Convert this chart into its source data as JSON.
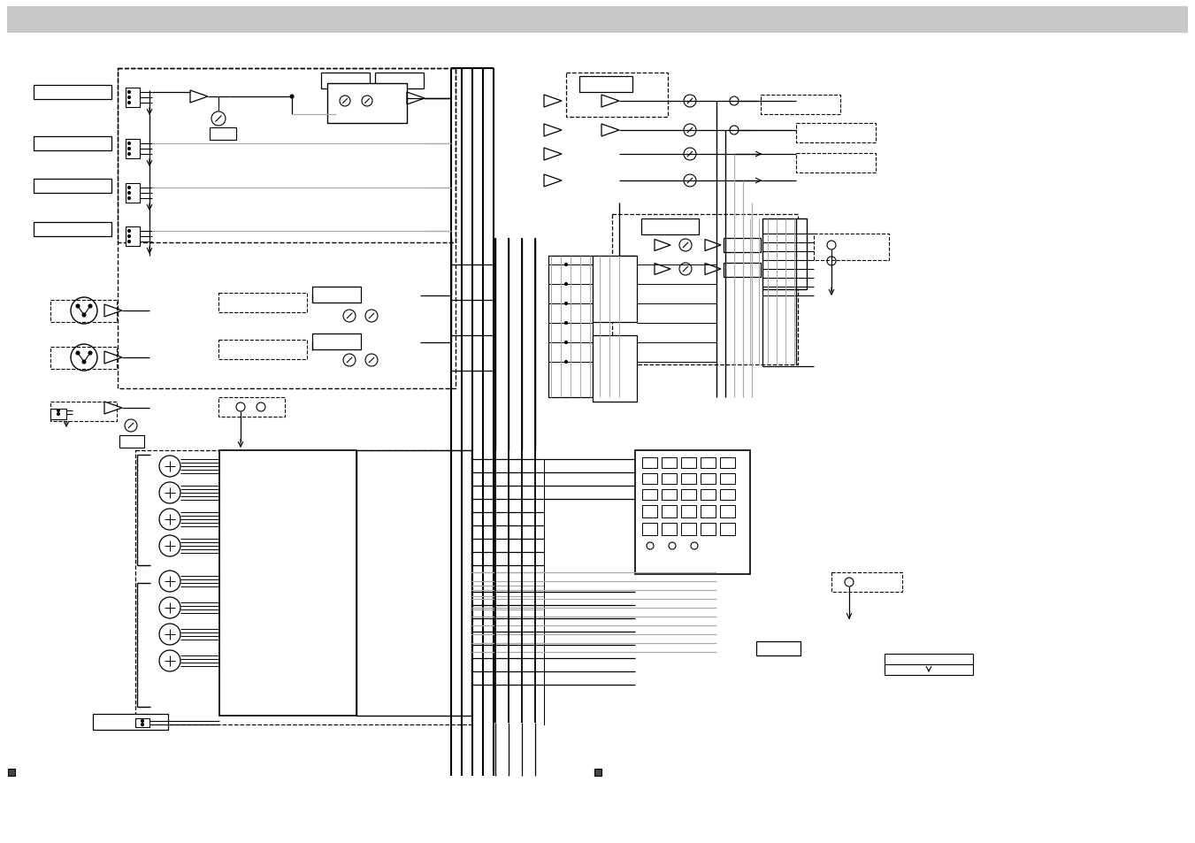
{
  "bg_top": "#c8c8c8",
  "bg_main": "#ffffff",
  "lc": "#000000",
  "gc": "#aaaaaa",
  "fig_width": 13.51,
  "fig_height": 9.54,
  "dpi": 100
}
